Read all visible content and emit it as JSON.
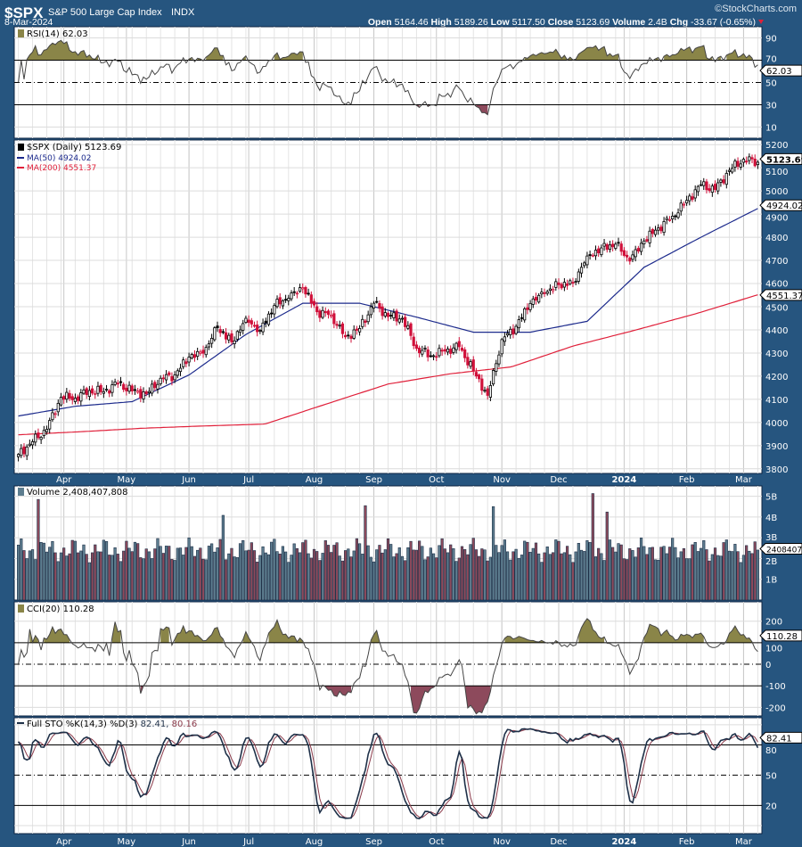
{
  "header": {
    "symbol": "$SPX",
    "name": "S&P 500 Large Cap Index",
    "exchange": "INDX",
    "date": "8-Mar-2024",
    "watermark": "©StockCharts.com",
    "quote": {
      "open_label": "Open",
      "open": "5164.46",
      "high_label": "High",
      "high": "5189.26",
      "low_label": "Low",
      "low": "5117.50",
      "close_label": "Close",
      "close": "5123.69",
      "volume_label": "Volume",
      "volume": "2.4B",
      "chg_label": "Chg",
      "chg": "-33.67 (-0.65%)"
    }
  },
  "colors": {
    "frame": "#26557f",
    "up": "#000000",
    "down": "#d0103a",
    "ma50": "#1c2a8c",
    "ma200": "#e0203a",
    "vol_up": "#5d7d8f",
    "vol_down": "#8d4a5c",
    "fill_pos": "#8a8548",
    "fill_neg": "#8d4a5c",
    "osc_line": "#1e3048",
    "sto_d": "#8b3a4a"
  },
  "chart_data": {
    "type": "candlestick",
    "period": "Daily",
    "start_date": "2023-03-10",
    "end_date": "2024-03-08",
    "x_tick_labels": [
      "Apr",
      "May",
      "Jun",
      "Jul",
      "Aug",
      "Sep",
      "Oct",
      "Nov",
      "Dec",
      "2024",
      "Feb",
      "Mar"
    ],
    "weekly_closes": [
      3862,
      3917,
      3971,
      4109,
      4105,
      4138,
      4133,
      4169,
      4136,
      4124,
      4191,
      4205,
      4282,
      4299,
      4409,
      4348,
      4450,
      4398,
      4505,
      4536,
      4582,
      4478,
      4464,
      4370,
      4406,
      4515,
      4457,
      4450,
      4320,
      4288,
      4308,
      4327,
      4224,
      4117,
      4358,
      4415,
      4514,
      4559,
      4595,
      4604,
      4719,
      4754,
      4770,
      4697,
      4784,
      4840,
      4891,
      4959,
      5027,
      5006,
      5089,
      5137,
      5124
    ],
    "ma50_monthly": [
      4028,
      4070,
      4090,
      4205,
      4380,
      4515,
      4515,
      4455,
      4390,
      4390,
      4437,
      4670,
      4800,
      4924.02
    ],
    "ma200_monthly": [
      3947,
      3960,
      3975,
      3985,
      3993,
      4080,
      4166,
      4210,
      4240,
      4330,
      4398,
      4470,
      4551.37
    ],
    "volume_spike_weeks": [
      1,
      14,
      24,
      33,
      40,
      41
    ],
    "panels": {
      "rsi": {
        "legend": "RSI(14) 62.03",
        "value": "62.03",
        "ticks": [
          "90",
          "70",
          "50",
          "30",
          "10"
        ],
        "levels": [
          70,
          50,
          30
        ],
        "ylim": [
          0,
          100
        ]
      },
      "price": {
        "legend": "$SPX (Daily) 5123.69",
        "ma50_legend": "MA(50) 4924.02",
        "ma200_legend": "MA(200) 4551.37",
        "close_badge": "5123.69",
        "ma50_badge": "4924.02",
        "ma200_badge": "4551.37",
        "ticks": [
          "5200",
          "5100",
          "5000",
          "4900",
          "4800",
          "4700",
          "4600",
          "4500",
          "4400",
          "4300",
          "4200",
          "4100",
          "4000",
          "3900",
          "3800"
        ],
        "ylim": [
          3780,
          5220
        ]
      },
      "volume": {
        "legend": "Volume 2,408,407,808",
        "badge": "2408407",
        "ticks": [
          "5B",
          "4B",
          "3B",
          "2B",
          "1B"
        ],
        "ylim": [
          0,
          5.5
        ]
      },
      "cci": {
        "legend": "CCI(20) 110.28",
        "badge": "110.28",
        "ticks": [
          "200",
          "100",
          "0",
          "-100",
          "-200"
        ],
        "levels": [
          100,
          0,
          -100
        ],
        "ylim": [
          -240,
          290
        ]
      },
      "sto": {
        "legend_prefix": "Full STO %K(14,3) %D(3)",
        "k_value": "82.41,",
        "d_value": "80.16",
        "badge": "82.41",
        "ticks": [
          "80",
          "50",
          "20"
        ],
        "levels": [
          80,
          50,
          20
        ],
        "ylim": [
          -8,
          107
        ]
      }
    }
  }
}
